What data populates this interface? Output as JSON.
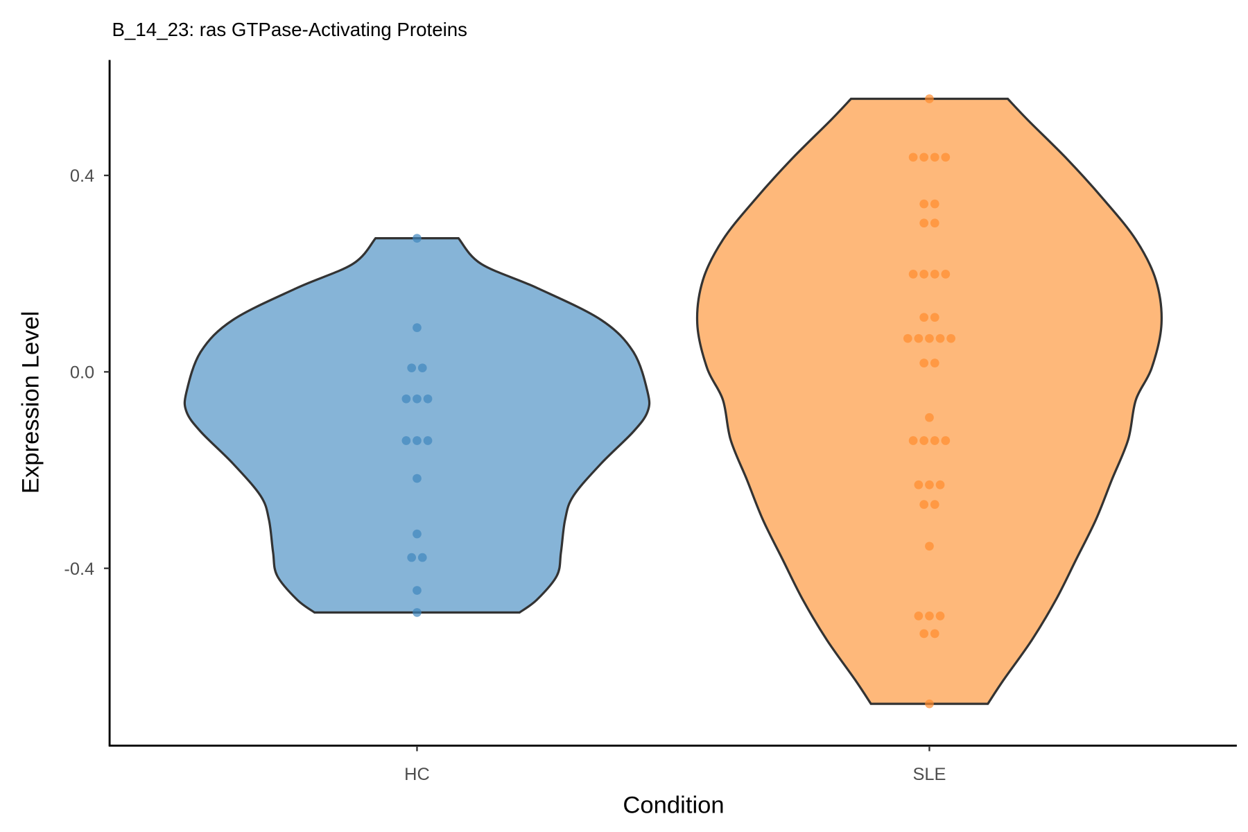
{
  "chart_data": {
    "type": "violin",
    "title": "B_14_23: ras GTPase-Activating Proteins",
    "xlabel": "Condition",
    "ylabel": "Expression Level",
    "categories": [
      "HC",
      "SLE"
    ],
    "ylim": [
      -0.761,
      0.635
    ],
    "xlim": [
      0.4,
      2.6
    ],
    "yticks": [
      0.4,
      0.0,
      -0.4
    ],
    "ytick_labels": [
      "0.4",
      "0.0",
      "-0.4"
    ],
    "grid": false,
    "series": [
      {
        "name": "HC",
        "fill": "#86b4d7",
        "point_color": "#3f86be",
        "points": [
          0.272,
          0.09,
          0.008,
          0.008,
          -0.055,
          -0.055,
          -0.055,
          -0.14,
          -0.14,
          -0.14,
          -0.217,
          -0.33,
          -0.378,
          -0.378,
          -0.445,
          -0.49
        ],
        "density_profile": [
          [
            0.272,
            0.081
          ],
          [
            0.22,
            0.125
          ],
          [
            0.171,
            0.234
          ],
          [
            0.106,
            0.359
          ],
          [
            0.041,
            0.422
          ],
          [
            -0.041,
            0.45
          ],
          [
            -0.081,
            0.45
          ],
          [
            -0.122,
            0.422
          ],
          [
            -0.187,
            0.359
          ],
          [
            -0.253,
            0.305
          ],
          [
            -0.301,
            0.289
          ],
          [
            -0.367,
            0.281
          ],
          [
            -0.415,
            0.273
          ],
          [
            -0.464,
            0.234
          ],
          [
            -0.49,
            0.2
          ]
        ]
      },
      {
        "name": "SLE",
        "fill": "#feb87a",
        "point_color": "#ff8c2e",
        "points": [
          0.556,
          0.437,
          0.437,
          0.437,
          0.437,
          0.342,
          0.342,
          0.303,
          0.303,
          0.199,
          0.199,
          0.199,
          0.199,
          0.111,
          0.111,
          0.068,
          0.068,
          0.068,
          0.068,
          0.068,
          0.018,
          0.018,
          -0.093,
          -0.14,
          -0.14,
          -0.14,
          -0.14,
          -0.23,
          -0.23,
          -0.23,
          -0.27,
          -0.27,
          -0.355,
          -0.497,
          -0.497,
          -0.497,
          -0.533,
          -0.533,
          -0.676
        ],
        "density_profile": [
          [
            0.556,
            0.153
          ],
          [
            0.513,
            0.192
          ],
          [
            0.432,
            0.27
          ],
          [
            0.35,
            0.341
          ],
          [
            0.269,
            0.403
          ],
          [
            0.187,
            0.442
          ],
          [
            0.098,
            0.453
          ],
          [
            0.008,
            0.434
          ],
          [
            -0.057,
            0.403
          ],
          [
            -0.138,
            0.388
          ],
          [
            -0.22,
            0.356
          ],
          [
            -0.301,
            0.325
          ],
          [
            -0.383,
            0.286
          ],
          [
            -0.464,
            0.247
          ],
          [
            -0.546,
            0.2
          ],
          [
            -0.627,
            0.145
          ],
          [
            -0.676,
            0.114
          ]
        ]
      }
    ]
  }
}
